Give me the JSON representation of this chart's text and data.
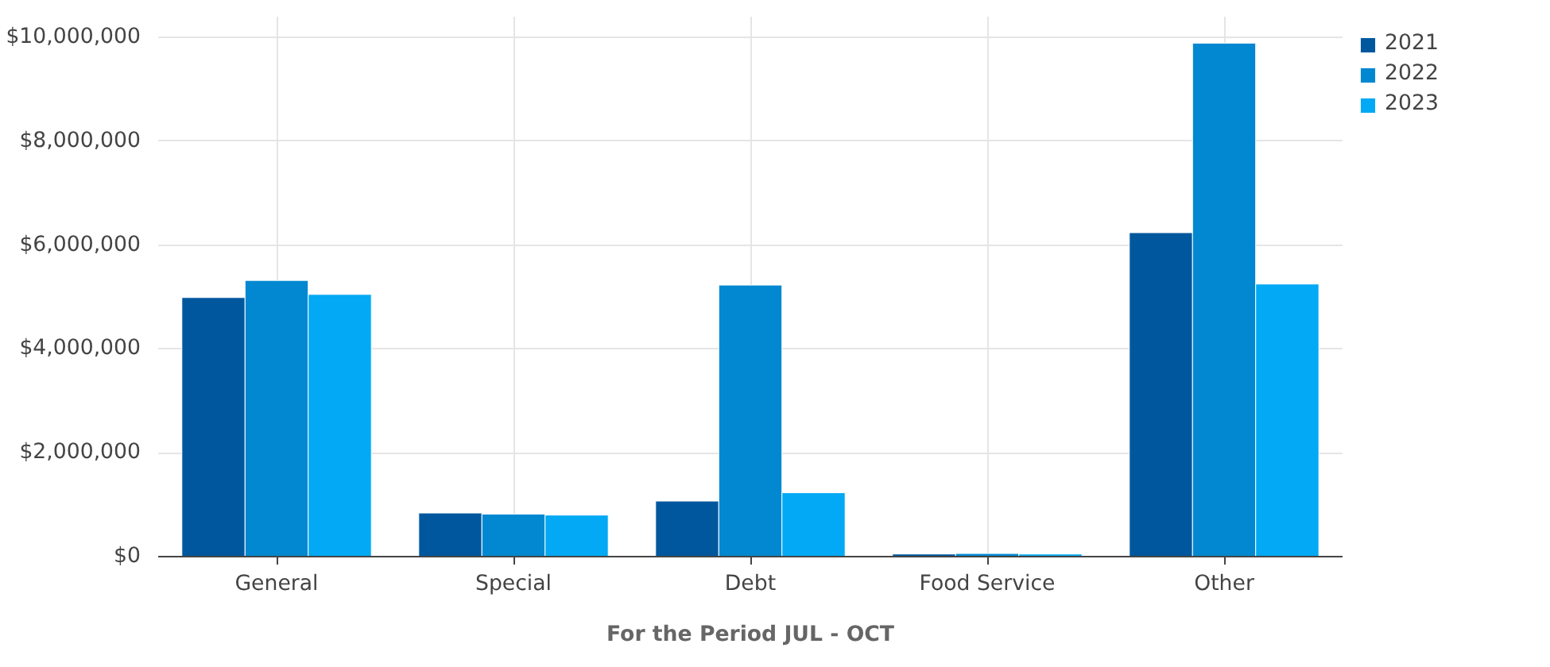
{
  "chart_data": {
    "type": "bar",
    "xlabel": "For the Period JUL - OCT",
    "categories": [
      "General",
      "Special",
      "Debt",
      "Food Service",
      "Other"
    ],
    "series": [
      {
        "name": "2021",
        "color": "#00579d",
        "values": [
          4990000,
          840000,
          1070000,
          50000,
          6240000
        ]
      },
      {
        "name": "2022",
        "color": "#0288d1",
        "values": [
          5320000,
          820000,
          5230000,
          60000,
          9890000
        ]
      },
      {
        "name": "2023",
        "color": "#03a9f4",
        "values": [
          5050000,
          800000,
          1230000,
          50000,
          5250000
        ]
      }
    ],
    "ylim": [
      0,
      10400000
    ],
    "yticks": [
      {
        "value": 0,
        "label": "$0"
      },
      {
        "value": 2000000,
        "label": "$2,000,000"
      },
      {
        "value": 4000000,
        "label": "$4,000,000"
      },
      {
        "value": 6000000,
        "label": "$6,000,000"
      },
      {
        "value": 8000000,
        "label": "$8,000,000"
      },
      {
        "value": 10000000,
        "label": "$10,000,000"
      }
    ],
    "grid": true,
    "legend": "top right"
  }
}
